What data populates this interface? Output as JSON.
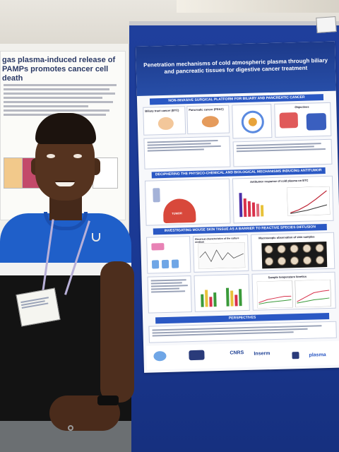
{
  "scene": {
    "left_poster_title": "gas plasma-induced release of PAMPs promotes cancer cell death",
    "main_poster_title": "Penetration mechanisms of cold atmospheric plasma through biliary and pancreatic tissues for digestive cancer treatment",
    "sections": [
      "NON-INVASIVE SURGICAL PLATFORM FOR BILIARY AND PANCREATIC CANCER",
      "DECIPHERING THE PHYSICO-CHEMICAL AND BIOLOGICAL MECHANISMS INDUCING ANTITUMOR RESPONSE",
      "INVESTIGATING MOUSE SKIN TISSUE AS A BARRIER TO REACTIVE SPECIES DIFFUSION",
      "PERSPECTIVES"
    ],
    "panel_labels": [
      "Biliary tract cancer (BTC)",
      "Pancreatic cancer (PDAC)",
      "Objectives",
      "Antitumor response of cold plasma on BTC",
      "TUMOR",
      "Macroscopic observation of skin samples",
      "Sample temperature kinetics",
      "Electrical characteristics of the culture medium"
    ],
    "logos": [
      "Inserm",
      "plasma",
      "CNRS"
    ],
    "colors": {
      "board_blue": "#1f3f9c",
      "poster_header": "#1d3a8a",
      "section_bar": "#2a58c4",
      "shirt_blue": "#1f5fc9"
    }
  }
}
